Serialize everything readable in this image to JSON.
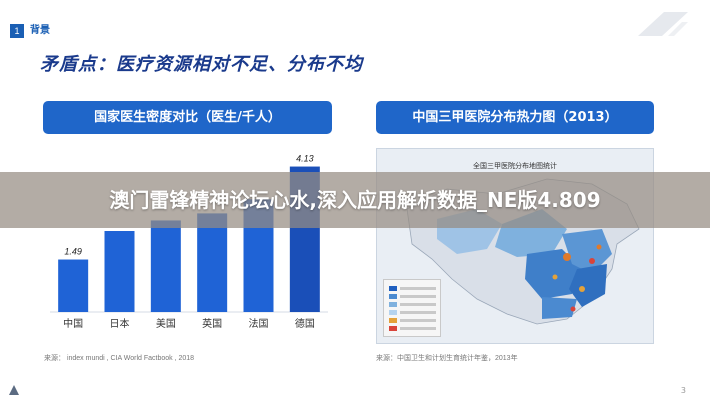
{
  "header": {
    "badge_number": "1",
    "section_label": "背景",
    "title": "矛盾点：医疗资源相对不足、分布不均"
  },
  "left_panel": {
    "header_label": "国家医生密度对比（医生/千人）",
    "source": "来源： index mundi , CIA World Factbook , 2018"
  },
  "right_panel": {
    "header_label": "中国三甲医院分布热力图（2013）",
    "map_title": "全国三甲医院分布地图统计",
    "source": "来源：中国卫生和计划生育统计年鉴，2013年"
  },
  "chart_data": {
    "type": "bar",
    "categories": [
      "中国",
      "日本",
      "美国",
      "英国",
      "法国",
      "德国"
    ],
    "values": [
      1.49,
      2.3,
      2.6,
      2.8,
      3.2,
      4.13
    ],
    "value_labels": [
      "1.49",
      "",
      "",
      "",
      "",
      "4.13"
    ],
    "ylim": [
      0,
      4.6
    ],
    "grid": false,
    "colors": {
      "bar": "#1f63d6",
      "highlight": "#1a4fb8"
    }
  },
  "overlay": {
    "text": "澳门雷锋精神论坛心水,深入应用解析数据_NE版4.809"
  },
  "footer": {
    "page_number": "3"
  },
  "colors": {
    "brand": "#1f66c9",
    "title": "#1a3a8c"
  }
}
